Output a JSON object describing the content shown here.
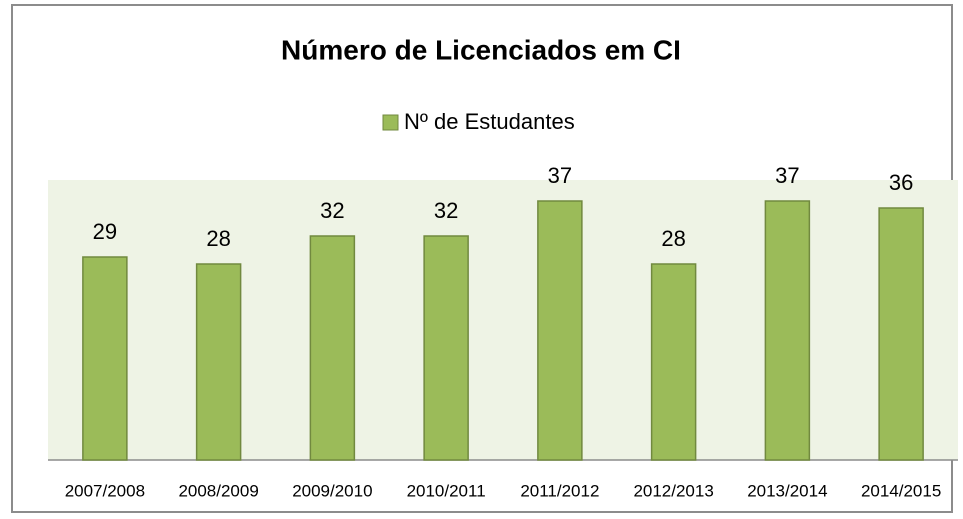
{
  "chart_data": {
    "type": "bar",
    "title": "Número de Licenciados em CI",
    "categories": [
      "2007/2008",
      "2008/2009",
      "2009/2010",
      "2010/2011",
      "2011/2012",
      "2012/2013",
      "2013/2014",
      "2014/2015"
    ],
    "series": [
      {
        "name": "Nº de Estudantes",
        "color": "#9bbb59",
        "values": [
          29,
          28,
          32,
          32,
          37,
          28,
          37,
          36
        ]
      }
    ],
    "ylim": [
      0,
      40
    ],
    "legend": "top"
  }
}
